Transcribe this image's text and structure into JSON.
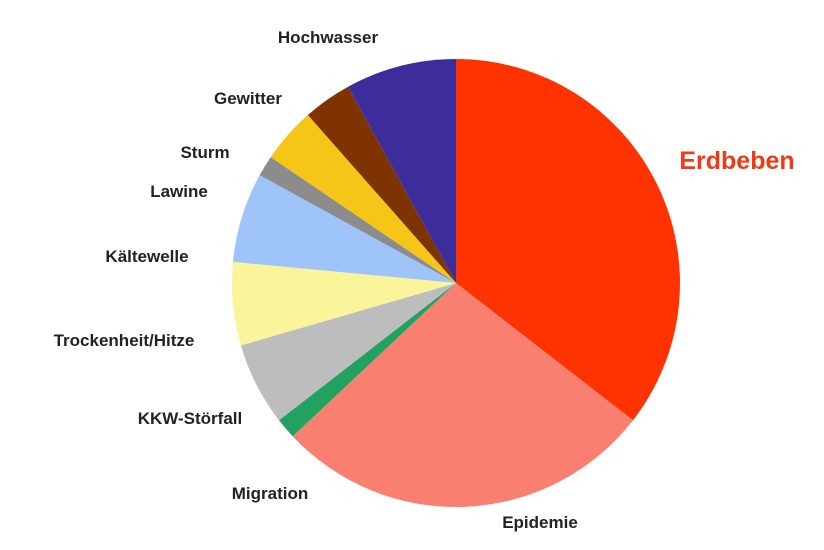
{
  "chart_data": {
    "type": "pie",
    "title": "",
    "start_angle_deg": 0,
    "direction": "clockwise",
    "highlight_color": "#F03A17",
    "slices": [
      {
        "name": "Erdbeben",
        "value": 35.5,
        "color": "#FF3300",
        "highlight": true
      },
      {
        "name": "Epidemie",
        "value": 27.5,
        "color": "#F98070",
        "highlight": false
      },
      {
        "name": "Migration",
        "value": 1.5,
        "color": "#22A260",
        "highlight": false
      },
      {
        "name": "KKW-Störfall",
        "value": 6.0,
        "color": "#BDBDBD",
        "highlight": false
      },
      {
        "name": "Trockenheit/Hitze",
        "value": 6.0,
        "color": "#FAF49A",
        "highlight": false
      },
      {
        "name": "Kältewelle",
        "value": 6.5,
        "color": "#9EC4F9",
        "highlight": false
      },
      {
        "name": "Lawine",
        "value": 1.5,
        "color": "#8C8C8C",
        "highlight": false
      },
      {
        "name": "Sturm",
        "value": 4.0,
        "color": "#F5C518",
        "highlight": false
      },
      {
        "name": "Gewitter",
        "value": 3.5,
        "color": "#7E3300",
        "highlight": false
      },
      {
        "name": "Hochwasser",
        "value": 8.0,
        "color": "#3D2D9A",
        "highlight": false
      }
    ]
  }
}
